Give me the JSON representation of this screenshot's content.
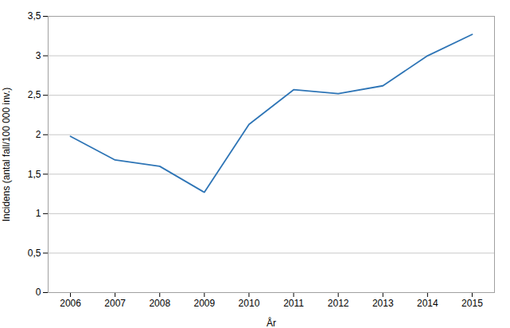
{
  "chart_data": {
    "type": "line",
    "xlabel": "År",
    "ylabel": "Incidens (antal fall/100 000 inv.)",
    "x": [
      2006,
      2007,
      2008,
      2009,
      2010,
      2011,
      2012,
      2013,
      2014,
      2015
    ],
    "values": [
      1.98,
      1.68,
      1.6,
      1.27,
      2.13,
      2.57,
      2.52,
      2.62,
      3.0,
      3.27
    ],
    "color": "#2e75b6",
    "xlim": [
      2005.5,
      2015.5
    ],
    "xticks": [
      2006,
      2007,
      2008,
      2009,
      2010,
      2011,
      2012,
      2013,
      2014,
      2015
    ],
    "ylim": [
      0,
      3.5
    ],
    "yticks": [
      0,
      {
        "value": 0.5,
        "label": "0,5"
      },
      1,
      {
        "value": 1.5,
        "label": "1,5"
      },
      2,
      {
        "value": 2.5,
        "label": "2,5"
      },
      3,
      {
        "value": 3.5,
        "label": "3,5"
      }
    ],
    "grid": true
  }
}
